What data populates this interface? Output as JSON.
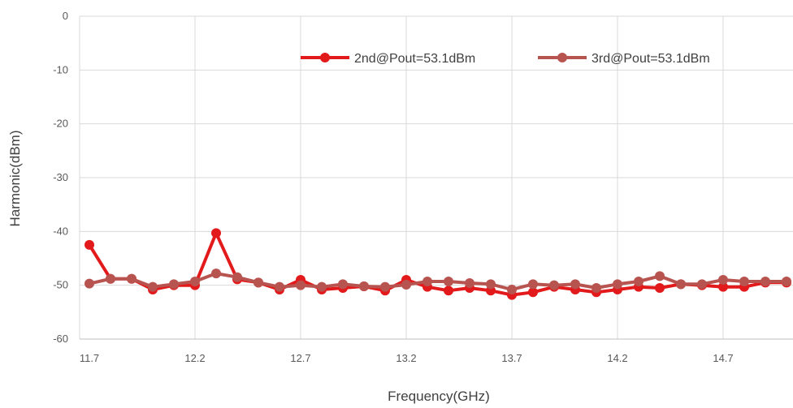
{
  "chart_data": {
    "type": "line",
    "xlabel": "Frequency(GHz)",
    "ylabel": "Harmonic(dBm)",
    "xlim": [
      11.7,
      15.1
    ],
    "ylim": [
      -60,
      0
    ],
    "x_ticks": [
      "11.7",
      "12.2",
      "12.7",
      "13.2",
      "13.7",
      "14.2",
      "14.7"
    ],
    "y_ticks": [
      "0",
      "-10",
      "-20",
      "-30",
      "-40",
      "-50",
      "-60"
    ],
    "grid": true,
    "legend_position": "top-right",
    "x": [
      11.7,
      11.8,
      11.9,
      12.0,
      12.1,
      12.2,
      12.3,
      12.4,
      12.5,
      12.6,
      12.7,
      12.8,
      12.9,
      13.0,
      13.1,
      13.2,
      13.3,
      13.4,
      13.5,
      13.6,
      13.7,
      13.8,
      13.9,
      14.0,
      14.1,
      14.2,
      14.3,
      14.4,
      14.5,
      14.6,
      14.7,
      14.8,
      14.9,
      15.0
    ],
    "series": [
      {
        "name": "2nd@Pout=53.1dBm",
        "color": "#e31a1c",
        "values": [
          -42.5,
          -48.8,
          -48.8,
          -50.8,
          -50.0,
          -50.0,
          -40.3,
          -48.9,
          -49.5,
          -50.8,
          -49.0,
          -50.8,
          -50.5,
          -50.2,
          -51.0,
          -49.0,
          -50.3,
          -51.0,
          -50.5,
          -51.0,
          -51.8,
          -51.3,
          -50.3,
          -50.8,
          -51.3,
          -50.8,
          -50.3,
          -50.5,
          -49.8,
          -50.0,
          -50.3,
          -50.3,
          -49.5,
          -49.5
        ]
      },
      {
        "name": "3rd@Pout=53.1dBm",
        "color": "#b85450",
        "values": [
          -49.7,
          -48.8,
          -48.8,
          -50.3,
          -49.8,
          -49.3,
          -47.8,
          -48.5,
          -49.5,
          -50.3,
          -50.0,
          -50.3,
          -49.8,
          -50.2,
          -50.3,
          -49.9,
          -49.3,
          -49.3,
          -49.6,
          -49.8,
          -50.8,
          -49.8,
          -50.0,
          -49.8,
          -50.5,
          -49.8,
          -49.3,
          -48.3,
          -49.8,
          -49.8,
          -49.0,
          -49.3,
          -49.3,
          -49.3
        ]
      }
    ]
  }
}
